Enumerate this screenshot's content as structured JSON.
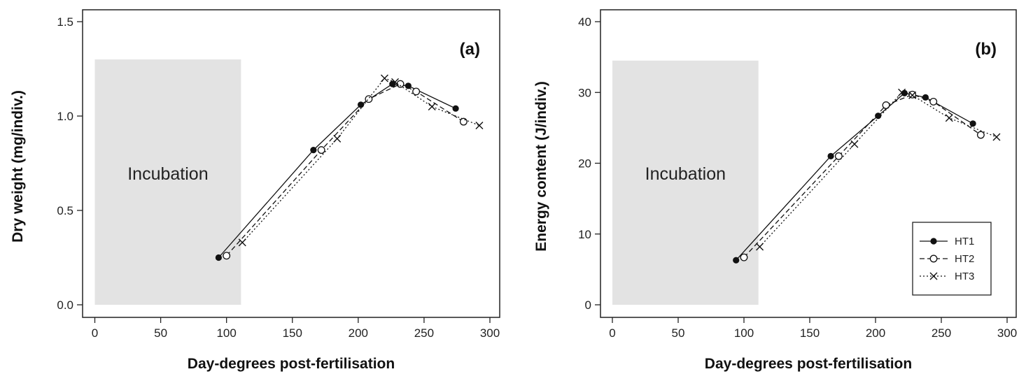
{
  "chart_data": [
    {
      "type": "line",
      "panel_label": "(a)",
      "xlabel": "Day-degrees post-fertilisation",
      "ylabel": "Dry weight  (mg/indiv.)",
      "xlim": [
        0,
        300
      ],
      "ylim": [
        0,
        1.5
      ],
      "xticks": [
        "0",
        "50",
        "100",
        "150",
        "200",
        "250",
        "300"
      ],
      "yticks": [
        "0.0",
        "0.5",
        "1.0",
        "1.5"
      ],
      "shaded_region": {
        "label": "Incubation",
        "x": [
          0,
          111
        ],
        "y": [
          0,
          1.3
        ]
      },
      "grid": false,
      "series": [
        {
          "name": "HT1",
          "marker": "filled-circle",
          "line": "solid",
          "x": [
            94,
            166,
            202,
            226,
            238,
            274
          ],
          "y": [
            0.25,
            0.82,
            1.06,
            1.17,
            1.16,
            1.04
          ]
        },
        {
          "name": "HT2",
          "marker": "open-circle",
          "line": "dashed",
          "x": [
            100,
            172,
            208,
            232,
            244,
            280
          ],
          "y": [
            0.26,
            0.82,
            1.09,
            1.17,
            1.13,
            0.97
          ]
        },
        {
          "name": "HT3",
          "marker": "cross",
          "line": "dotted",
          "x": [
            112,
            184,
            220,
            228,
            256,
            292
          ],
          "y": [
            0.33,
            0.88,
            1.2,
            1.18,
            1.05,
            0.95
          ]
        }
      ]
    },
    {
      "type": "line",
      "panel_label": "(b)",
      "xlabel": "Day-degrees post-fertilisation",
      "ylabel": "Energy content  (J/indiv.)",
      "xlim": [
        0,
        300
      ],
      "ylim": [
        0,
        40
      ],
      "xticks": [
        "0",
        "50",
        "100",
        "150",
        "200",
        "250",
        "300"
      ],
      "yticks": [
        "0",
        "10",
        "20",
        "30",
        "40"
      ],
      "shaded_region": {
        "label": "Incubation",
        "x": [
          0,
          111
        ],
        "y": [
          0,
          34.5
        ]
      },
      "grid": false,
      "legend_position": "bottom-right",
      "series": [
        {
          "name": "HT1",
          "marker": "filled-circle",
          "line": "solid",
          "x": [
            94,
            166,
            202,
            222,
            238,
            274
          ],
          "y": [
            6.3,
            21.0,
            26.7,
            29.9,
            29.3,
            25.6
          ]
        },
        {
          "name": "HT2",
          "marker": "open-circle",
          "line": "dashed",
          "x": [
            100,
            172,
            208,
            228,
            244,
            280
          ],
          "y": [
            6.7,
            21.0,
            28.2,
            29.7,
            28.7,
            24.0
          ]
        },
        {
          "name": "HT3",
          "marker": "cross",
          "line": "dotted",
          "x": [
            112,
            184,
            220,
            228,
            256,
            292
          ],
          "y": [
            8.2,
            22.7,
            30.0,
            29.6,
            26.4,
            23.7
          ]
        }
      ]
    }
  ]
}
